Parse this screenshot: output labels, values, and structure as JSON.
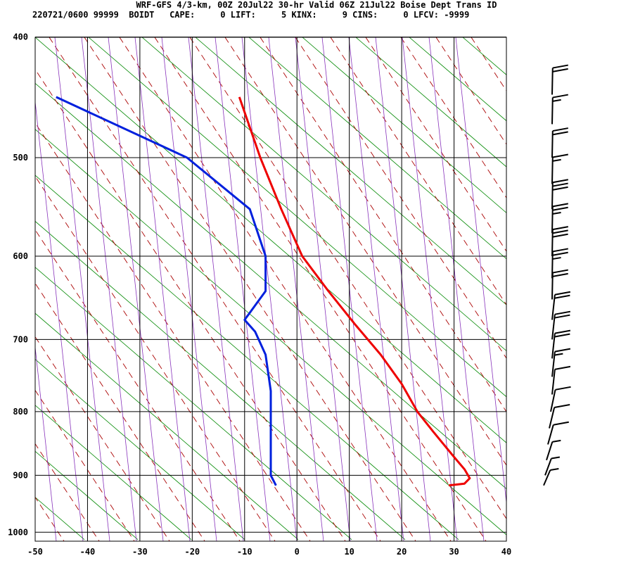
{
  "header": {
    "title": "WRF-GFS 4/3-km, 00Z 20Jul22 30-hr Valid 06Z 21Jul22 Boise Dept Trans ID",
    "indices": "220721/0600 99999  BOIDT   CAPE:     0 LIFT:     5 KINX:     9 CINS:     0 LFCV: -9999"
  },
  "chart_data": {
    "type": "line",
    "subtype": "skew-T log-P sounding",
    "x_axis": {
      "label": "",
      "range": [
        -50,
        40
      ],
      "ticks": [
        -50,
        -40,
        -30,
        -20,
        -10,
        0,
        10,
        20,
        30,
        40
      ],
      "units": "°C"
    },
    "y_axis": {
      "label": "",
      "range": [
        1040,
        400
      ],
      "scale": "log",
      "ticks": [
        400,
        500,
        600,
        700,
        800,
        900,
        1000
      ],
      "units": "hPa"
    },
    "grid": true,
    "background_lines": {
      "isotherms": "black",
      "dry_adiabats": "green",
      "moist_adiabats": "darkred dashed",
      "mixing_ratio": "purple"
    },
    "colors": {
      "temperature": "#ee0000",
      "dewpoint": "#0020dd",
      "wind": "#000000"
    },
    "series": [
      {
        "role": "temperature",
        "points": [
          {
            "p": 917,
            "t": 29
          },
          {
            "p": 914,
            "t": 32
          },
          {
            "p": 905,
            "t": 33
          },
          {
            "p": 890,
            "t": 32
          },
          {
            "p": 870,
            "t": 30
          },
          {
            "p": 830,
            "t": 26
          },
          {
            "p": 800,
            "t": 23
          },
          {
            "p": 760,
            "t": 20
          },
          {
            "p": 720,
            "t": 16
          },
          {
            "p": 680,
            "t": 11
          },
          {
            "p": 640,
            "t": 6
          },
          {
            "p": 600,
            "t": 1
          },
          {
            "p": 550,
            "t": -3
          },
          {
            "p": 500,
            "t": -7
          },
          {
            "p": 447,
            "t": -11
          }
        ]
      },
      {
        "role": "dewpoint",
        "points": [
          {
            "p": 917,
            "t": -4
          },
          {
            "p": 900,
            "t": -5
          },
          {
            "p": 880,
            "t": -5
          },
          {
            "p": 850,
            "t": -5
          },
          {
            "p": 800,
            "t": -5
          },
          {
            "p": 770,
            "t": -5
          },
          {
            "p": 720,
            "t": -6
          },
          {
            "p": 690,
            "t": -8
          },
          {
            "p": 675,
            "t": -10
          },
          {
            "p": 640,
            "t": -6
          },
          {
            "p": 600,
            "t": -6
          },
          {
            "p": 550,
            "t": -9
          },
          {
            "p": 500,
            "t": -21
          },
          {
            "p": 447,
            "t": -46
          }
        ]
      }
    ],
    "wind_barbs": [
      {
        "p": 445,
        "knots": 20
      },
      {
        "p": 470,
        "knots": 15
      },
      {
        "p": 500,
        "knots": 20
      },
      {
        "p": 525,
        "knots": 15
      },
      {
        "p": 550,
        "knots": 30
      },
      {
        "p": 575,
        "knots": 25
      },
      {
        "p": 600,
        "knots": 30
      },
      {
        "p": 625,
        "knots": 25
      },
      {
        "p": 650,
        "knots": 20
      },
      {
        "p": 675,
        "knots": 20
      },
      {
        "p": 700,
        "knots": 20
      },
      {
        "p": 725,
        "knots": 20
      },
      {
        "p": 750,
        "knots": 15
      },
      {
        "p": 775,
        "knots": 10
      },
      {
        "p": 800,
        "knots": 10
      },
      {
        "p": 825,
        "knots": 10
      },
      {
        "p": 850,
        "knots": 10
      },
      {
        "p": 875,
        "knots": 5
      },
      {
        "p": 900,
        "knots": 5
      },
      {
        "p": 917,
        "knots": 5
      }
    ]
  }
}
